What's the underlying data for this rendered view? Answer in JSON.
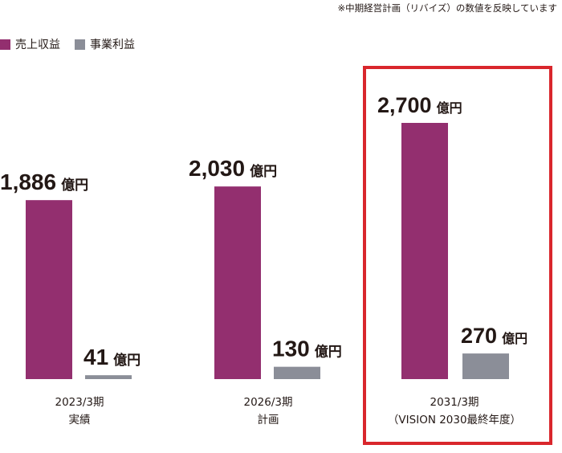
{
  "note": "※中期経営計画（リバイズ）の数値を反映しています",
  "legend": [
    {
      "label": "売上収益",
      "color": "#932f6f"
    },
    {
      "label": "事業利益",
      "color": "#8b8e98"
    }
  ],
  "chart_data": {
    "type": "bar",
    "categories": [
      {
        "line1": "2023/3期",
        "line2": "実績"
      },
      {
        "line1": "2026/3期",
        "line2": "計画"
      },
      {
        "line1": "2031/3期",
        "line2": "（VISION 2030最終年度）"
      }
    ],
    "series": [
      {
        "name": "売上収益",
        "values": [
          1886,
          2030,
          2700
        ],
        "labels": [
          "1,886",
          "2,030",
          "2,700"
        ],
        "color": "#932f6f"
      },
      {
        "name": "事業利益",
        "values": [
          41,
          130,
          270
        ],
        "labels": [
          "41",
          "130",
          "270"
        ],
        "color": "#8b8e98"
      }
    ],
    "unit": "億円",
    "highlight_category": 2,
    "highlight_color": "#d9262c"
  }
}
